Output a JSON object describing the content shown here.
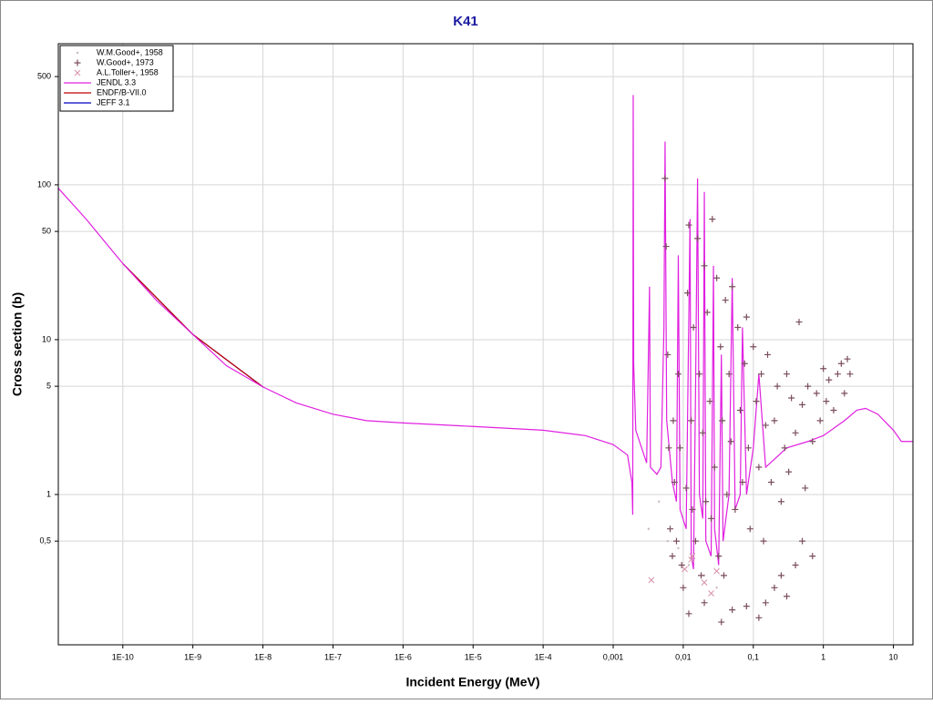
{
  "chart_data": {
    "type": "line",
    "title": "K41",
    "x_label": "Incident Energy (MeV)",
    "y_label": "Cross section (b)",
    "log_x": true,
    "log_y": true,
    "grid": true,
    "legend": "upper left",
    "xlim": [
      1.2e-11,
      19
    ],
    "ylim": [
      0.107,
      815
    ],
    "xticks": [
      {
        "value": 1e-10,
        "label": "1E-10"
      },
      {
        "value": 1e-09,
        "label": "1E-9"
      },
      {
        "value": 1e-08,
        "label": "1E-8"
      },
      {
        "value": 1e-07,
        "label": "1E-7"
      },
      {
        "value": 1e-06,
        "label": "1E-6"
      },
      {
        "value": 1e-05,
        "label": "1E-5"
      },
      {
        "value": 0.0001,
        "label": "1E-4"
      },
      {
        "value": 0.001,
        "label": "0,001"
      },
      {
        "value": 0.01,
        "label": "0,01"
      },
      {
        "value": 0.1,
        "label": "0,1"
      },
      1,
      10
    ],
    "yticks": [
      {
        "value": 0.5,
        "label": "0,5"
      },
      1,
      5,
      10,
      50,
      100,
      500
    ],
    "series": [
      {
        "name": "W.M.Good+, 1958",
        "marker": "dot",
        "color": "#c8b8c0",
        "x": [
          0.0032,
          0.0045,
          0.006,
          0.0085,
          0.012,
          0.02,
          0.03
        ],
        "values": [
          0.6,
          0.9,
          0.5,
          0.45,
          0.35,
          0.3,
          0.25
        ]
      },
      {
        "name": "W.Good+, 1973",
        "marker": "plus",
        "color": "#7a4e5c",
        "x": [
          0.0055,
          0.0057,
          0.006,
          0.0062,
          0.0065,
          0.007,
          0.0072,
          0.0075,
          0.008,
          0.0085,
          0.009,
          0.0095,
          0.01,
          0.011,
          0.0115,
          0.012,
          0.013,
          0.0135,
          0.014,
          0.015,
          0.016,
          0.017,
          0.018,
          0.019,
          0.02,
          0.021,
          0.022,
          0.024,
          0.025,
          0.026,
          0.028,
          0.03,
          0.032,
          0.034,
          0.036,
          0.038,
          0.04,
          0.042,
          0.045,
          0.048,
          0.05,
          0.055,
          0.06,
          0.065,
          0.07,
          0.075,
          0.08,
          0.085,
          0.09,
          0.1,
          0.11,
          0.12,
          0.13,
          0.14,
          0.15,
          0.16,
          0.18,
          0.2,
          0.22,
          0.25,
          0.28,
          0.3,
          0.32,
          0.35,
          0.4,
          0.45,
          0.5,
          0.55,
          0.6,
          0.7,
          0.8,
          0.9,
          1,
          1.1,
          1.2,
          1.4,
          1.6,
          1.8,
          2,
          2.2,
          2.4,
          0.012,
          0.02,
          0.035,
          0.05,
          0.08,
          0.12,
          0.15,
          0.2,
          0.25,
          0.3,
          0.4,
          0.5,
          0.7
        ],
        "values": [
          110,
          40,
          8,
          2,
          0.6,
          0.4,
          3,
          1.2,
          0.5,
          6,
          2,
          0.35,
          0.25,
          1.1,
          20,
          55,
          3,
          0.8,
          12,
          0.5,
          45,
          6,
          0.3,
          2.5,
          30,
          0.9,
          15,
          4,
          0.7,
          60,
          1.5,
          25,
          0.4,
          9,
          3,
          0.3,
          18,
          1,
          6,
          2.2,
          22,
          0.8,
          12,
          3.5,
          1.2,
          7,
          14,
          2,
          0.6,
          9,
          4,
          1.5,
          6,
          0.5,
          2.8,
          8,
          1.2,
          3,
          5,
          0.9,
          2,
          6,
          1.4,
          4.2,
          2.5,
          13,
          3.8,
          1.1,
          5,
          2.2,
          4.5,
          3,
          6.5,
          4,
          5.5,
          3.5,
          6,
          7,
          4.5,
          7.5,
          6,
          0.17,
          0.2,
          0.15,
          0.18,
          0.19,
          0.16,
          0.2,
          0.25,
          0.3,
          0.22,
          0.35,
          0.5,
          0.4
        ]
      },
      {
        "name": "A.L.Toller+, 1958",
        "marker": "cross",
        "color": "#d890a8",
        "x": [
          0.0035,
          0.0105,
          0.013,
          0.0135,
          0.02,
          0.025,
          0.03
        ],
        "values": [
          0.28,
          0.33,
          0.38,
          0.4,
          0.27,
          0.23,
          0.32
        ]
      },
      {
        "name": "JENDL 3.3",
        "marker": "line",
        "color": "#e020e0",
        "x": [
          1.2e-11,
          3e-11,
          1e-10,
          3e-10,
          1e-09,
          3e-09,
          1e-08,
          3e-08,
          1e-07,
          3e-07,
          1e-06,
          1e-05,
          0.0001,
          0.0004,
          0.001,
          0.0016,
          0.00185,
          0.0019,
          0.00193,
          0.00196,
          0.0021,
          0.003,
          0.0033,
          0.0034,
          0.0042,
          0.0048,
          0.0053,
          0.0055,
          0.0058,
          0.007,
          0.008,
          0.0085,
          0.009,
          0.011,
          0.0125,
          0.013,
          0.014,
          0.015,
          0.016,
          0.017,
          0.019,
          0.02,
          0.021,
          0.025,
          0.027,
          0.028,
          0.032,
          0.035,
          0.037,
          0.045,
          0.05,
          0.055,
          0.065,
          0.07,
          0.08,
          0.1,
          0.12,
          0.15,
          0.3,
          0.6,
          1,
          2,
          3,
          4,
          6,
          10,
          13,
          19
        ],
        "values": [
          95,
          60,
          31,
          18,
          10.8,
          6.8,
          4.95,
          3.9,
          3.3,
          3.0,
          2.9,
          2.75,
          2.6,
          2.4,
          2.1,
          1.8,
          1.2,
          0.74,
          380,
          7,
          2.6,
          1.6,
          22,
          1.5,
          1.35,
          1.5,
          12,
          190,
          3,
          1.2,
          0.9,
          35,
          0.8,
          0.6,
          60,
          0.4,
          0.33,
          5,
          110,
          1,
          0.7,
          90,
          0.5,
          0.4,
          30,
          0.6,
          0.35,
          8,
          0.5,
          1,
          25,
          0.8,
          1,
          12,
          1,
          2,
          6,
          1.5,
          2,
          2.2,
          2.4,
          3,
          3.5,
          3.6,
          3.3,
          2.6,
          2.2,
          2.2
        ]
      },
      {
        "name": "ENDF/B-VII.0",
        "marker": "line",
        "color": "#c00000",
        "x": [
          1e-10,
          1e-09,
          1e-08
        ],
        "values": [
          31,
          10.8,
          4.95
        ]
      },
      {
        "name": "JEFF 3.1",
        "marker": "line",
        "color": "#0000c0",
        "x": [
          1e-10,
          1e-09,
          1e-08
        ],
        "values": [
          31,
          10.8,
          4.95
        ]
      }
    ]
  }
}
